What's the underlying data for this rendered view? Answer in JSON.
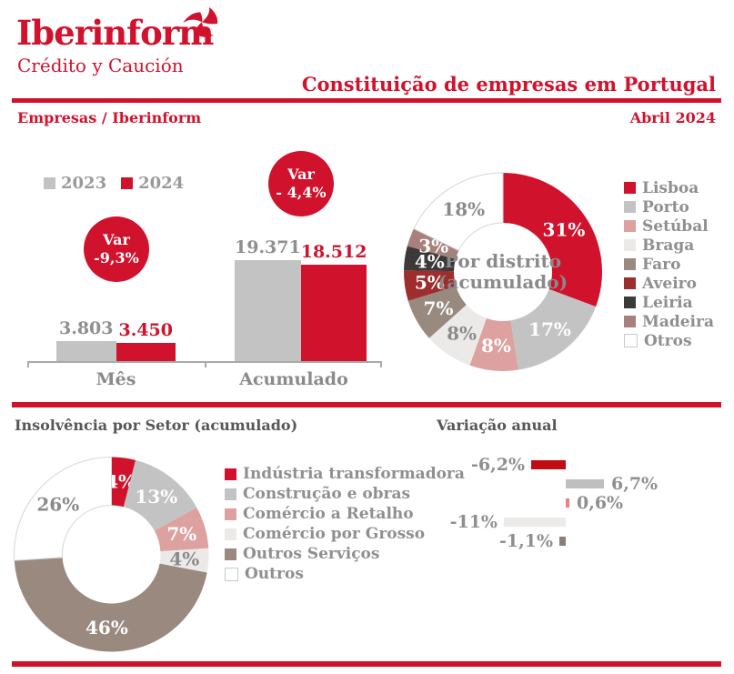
{
  "header": {
    "logo_title": "Iberinform",
    "logo_subtitle": "Crédito y Caución",
    "title": "Constituição de empresas em Portugal",
    "section_label": "Empresas / Iberinform",
    "date_label": "Abril 2024"
  },
  "theme": {
    "accent_red": "#d1122d",
    "gray": "#c3c3c3",
    "text_gray": "#8f8f8f"
  },
  "chart_data": [
    {
      "id": "constituicao_bars",
      "type": "bar",
      "categories": [
        "Mês",
        "Acumulado"
      ],
      "series": [
        {
          "name": "2023",
          "values": [
            3803,
            19371
          ],
          "displays": [
            "3.803",
            "19.371"
          ],
          "color": "#c3c3c3",
          "label_color": "#8f8f8f"
        },
        {
          "name": "2024",
          "values": [
            3450,
            18512
          ],
          "displays": [
            "3.450",
            "18.512"
          ],
          "color": "#d1122d",
          "label_color": "#d1122d"
        }
      ],
      "ylim": [
        0,
        19371
      ],
      "annotations": [
        {
          "line1": "Var",
          "line2": "-9,3%"
        },
        {
          "line1": "Var",
          "line2": "- 4,4%"
        }
      ]
    },
    {
      "id": "district_donut",
      "type": "pie",
      "title_line1": "Por distrito",
      "title_line2": "(acumulado)",
      "segments": [
        {
          "label": "Lisboa",
          "value": 31,
          "display": "31%",
          "color": "#d1122d",
          "text_color": "#ffffff"
        },
        {
          "label": "Porto",
          "value": 17,
          "display": "17%",
          "color": "#c3c3c3",
          "text_color": "#ffffff"
        },
        {
          "label": "Setúbal",
          "value": 8,
          "display": "8%",
          "color": "#dda1a0",
          "text_color": "#ffffff"
        },
        {
          "label": "Braga",
          "value": 8,
          "display": "8%",
          "color": "#eceae8",
          "text_color": "#8a8a8a"
        },
        {
          "label": "Faro",
          "value": 7,
          "display": "7%",
          "color": "#998a80",
          "text_color": "#ffffff"
        },
        {
          "label": "Aveiro",
          "value": 5,
          "display": "5%",
          "color": "#9e2d2d",
          "text_color": "#ffffff"
        },
        {
          "label": "Leiria",
          "value": 4,
          "display": "4%",
          "color": "#3b3a39",
          "text_color": "#ffffff"
        },
        {
          "label": "Madeira",
          "value": 3,
          "display": "3%",
          "color": "#a9807b",
          "text_color": "#ffffff"
        },
        {
          "label": "Otros",
          "value": 18,
          "display": "18%",
          "color": "#ffffff",
          "text_color": "#8a8a8a",
          "stroke": "#d6d6d6"
        }
      ]
    },
    {
      "id": "sector_donut",
      "type": "pie",
      "title": "Insolvência por Setor (acumulado)",
      "segments": [
        {
          "label": "Indústria transformadora",
          "value": 4,
          "display": "4%",
          "color": "#d1122d",
          "text_color": "#ffffff"
        },
        {
          "label": "Construção e obras",
          "value": 13,
          "display": "13%",
          "color": "#c3c3c3",
          "text_color": "#ffffff"
        },
        {
          "label": "Comércio a Retalho",
          "value": 7,
          "display": "7%",
          "color": "#dda1a0",
          "text_color": "#ffffff"
        },
        {
          "label": "Comércio por Grosso",
          "value": 4,
          "display": "4%",
          "color": "#eceae8",
          "text_color": "#8a8a8a"
        },
        {
          "label": "Outros Serviços",
          "value": 46,
          "display": "46%",
          "color": "#99897e",
          "text_color": "#ffffff"
        },
        {
          "label": "Outros",
          "value": 26,
          "display": "26%",
          "color": "#ffffff",
          "text_color": "#8a8a8a",
          "stroke": "#d6d6d6"
        }
      ]
    },
    {
      "id": "variation_bars",
      "type": "bar",
      "orientation": "horizontal",
      "title": "Variação anual",
      "categories": [
        "Indústria transformadora",
        "Construção e obras",
        "Comércio a Retalho",
        "Comércio por Grosso",
        "Outros Serviços"
      ],
      "values": [
        -6.2,
        6.7,
        0.6,
        -11,
        -1.1
      ],
      "displays": [
        "-6,2%",
        "6,7%",
        "0,6%",
        "-11%",
        "-1,1%"
      ],
      "colors": [
        "#c00d12",
        "#bfbfbf",
        "#f08080",
        "#ecebe9",
        "#8e7d71"
      ]
    }
  ]
}
